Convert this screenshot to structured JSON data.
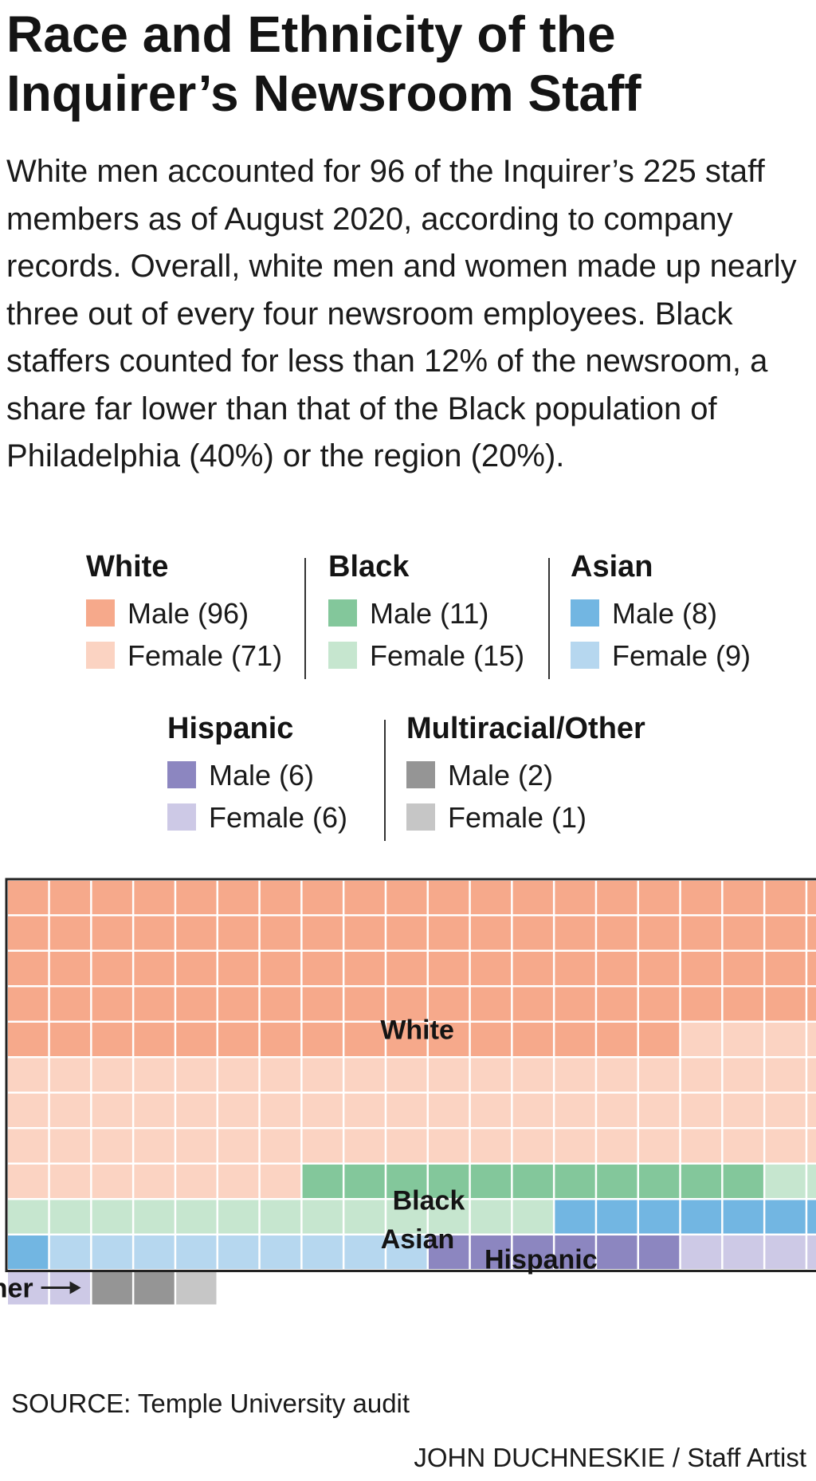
{
  "title": "Race and Ethnicity of the Inquirer’s Newsroom Staff",
  "description": "White men accounted for 96 of the Inquirer’s 225 staff members as of August 2020, according to company records. Overall, white men and women made up nearly three out of every four newsroom employees. Black staffers counted for less than 12% of the newsroom, a share far lower than that of the Black population of Philadelphia (40%) or the region (20%).",
  "legend": [
    {
      "group": "White",
      "male": "Male (96)",
      "female": "Female (71)",
      "male_color": "#f6a98b",
      "female_color": "#fbd3c2"
    },
    {
      "group": "Black",
      "male": "Male (11)",
      "female": "Female (15)",
      "male_color": "#83c79b",
      "female_color": "#c6e6cf"
    },
    {
      "group": "Asian",
      "male": "Male (8)",
      "female": "Female (9)",
      "male_color": "#72b6e2",
      "female_color": "#b6d7ef"
    },
    {
      "group": "Hispanic",
      "male": "Male (6)",
      "female": "Female (6)",
      "male_color": "#8c86c0",
      "female_color": "#cdc9e6"
    },
    {
      "group": "Multiracial/Other",
      "male": "Male (2)",
      "female": "Female (1)",
      "male_color": "#959595",
      "female_color": "#c6c6c6"
    }
  ],
  "chart_data": {
    "type": "waffle",
    "total": 225,
    "columns": 20,
    "title": "Race and Ethnicity of the Inquirer’s Newsroom Staff",
    "series": [
      {
        "name": "White",
        "label": "White",
        "segments": [
          {
            "name": "Male",
            "value": 96,
            "color": "#f6a98b"
          },
          {
            "name": "Female",
            "value": 71,
            "color": "#fbd3c2"
          }
        ]
      },
      {
        "name": "Black",
        "label": "Black",
        "segments": [
          {
            "name": "Male",
            "value": 11,
            "color": "#83c79b"
          },
          {
            "name": "Female",
            "value": 15,
            "color": "#c6e6cf"
          }
        ]
      },
      {
        "name": "Asian",
        "label": "Asian",
        "segments": [
          {
            "name": "Male",
            "value": 8,
            "color": "#72b6e2"
          },
          {
            "name": "Female",
            "value": 9,
            "color": "#b6d7ef"
          }
        ]
      },
      {
        "name": "Hispanic",
        "label": "Hispanic",
        "segments": [
          {
            "name": "Male",
            "value": 6,
            "color": "#8c86c0"
          },
          {
            "name": "Female",
            "value": 6,
            "color": "#cdc9e6"
          }
        ]
      },
      {
        "name": "Multiracial/Other",
        "label": "Multiracial/Other",
        "segments": [
          {
            "name": "Male",
            "value": 2,
            "color": "#959595"
          },
          {
            "name": "Female",
            "value": 1,
            "color": "#c6c6c6"
          }
        ]
      }
    ],
    "annotation": "Multiracial/Other"
  },
  "source": "SOURCE: Temple University audit",
  "credit": "JOHN DUCHNESKIE / Staff Artist"
}
